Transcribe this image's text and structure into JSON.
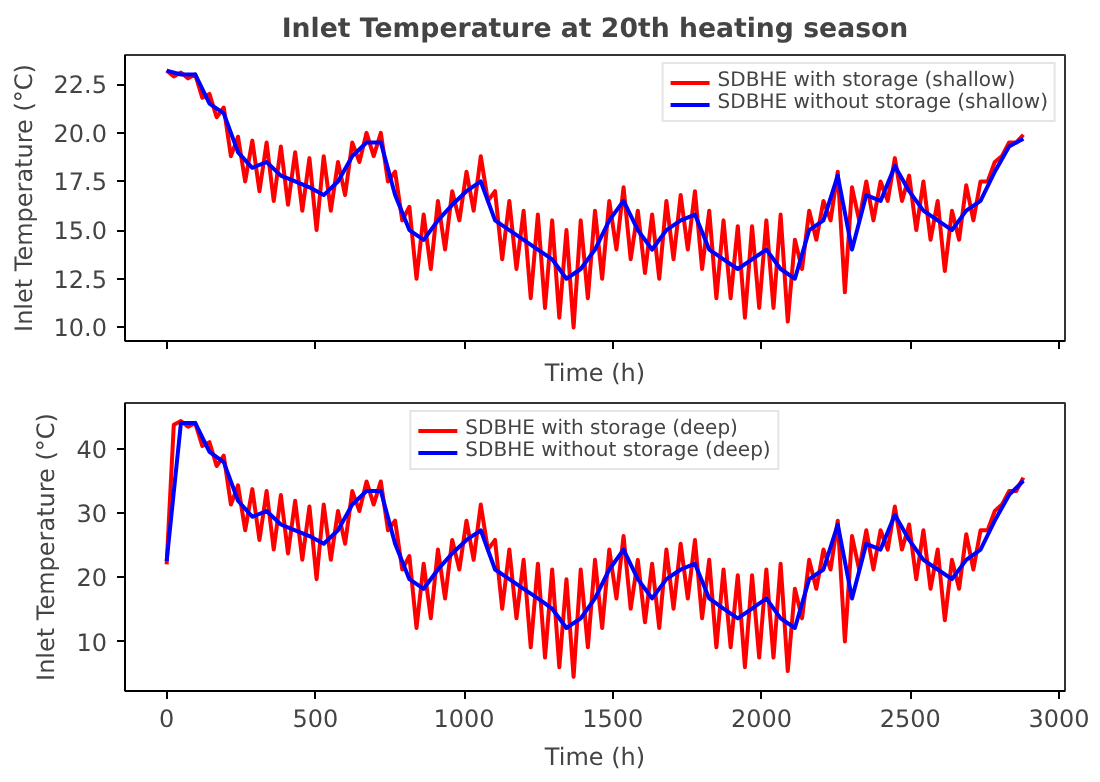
{
  "chart_data": [
    {
      "type": "line",
      "title": "Inlet Temperature at 20th heating season",
      "xlabel": "Time (h)",
      "ylabel": "Inlet Temperature (°C)",
      "xlim": [
        -140,
        3020
      ],
      "xticks": [
        0,
        500,
        1000,
        1500,
        2000,
        2500,
        3000
      ],
      "ylim": [
        9.3,
        24.0
      ],
      "yticks": [
        {
          "value": 10,
          "label": "10.0"
        },
        12.5,
        {
          "value": 15,
          "label": "15.0"
        },
        17.5,
        {
          "value": 20,
          "label": "20.0"
        },
        22.5
      ],
      "tick_labels": "y",
      "grid": false,
      "legend": "top right",
      "marker": "none",
      "line_style": "solid",
      "series": [
        {
          "name": "SDBHE with storage (shallow)",
          "color": "#ff0000",
          "x": [
            0,
            24,
            48,
            72,
            96,
            120,
            144,
            168,
            192,
            216,
            240,
            264,
            288,
            312,
            336,
            360,
            384,
            408,
            432,
            456,
            480,
            504,
            528,
            552,
            576,
            600,
            624,
            648,
            672,
            696,
            720,
            744,
            768,
            792,
            816,
            840,
            864,
            888,
            912,
            936,
            960,
            984,
            1008,
            1032,
            1056,
            1080,
            1104,
            1128,
            1152,
            1176,
            1200,
            1224,
            1248,
            1272,
            1296,
            1320,
            1344,
            1368,
            1392,
            1416,
            1440,
            1464,
            1488,
            1512,
            1536,
            1560,
            1584,
            1608,
            1632,
            1656,
            1680,
            1704,
            1728,
            1752,
            1776,
            1800,
            1824,
            1848,
            1872,
            1896,
            1920,
            1944,
            1968,
            1992,
            2016,
            2040,
            2064,
            2088,
            2112,
            2136,
            2160,
            2184,
            2208,
            2232,
            2256,
            2280,
            2304,
            2328,
            2352,
            2376,
            2400,
            2424,
            2448,
            2472,
            2496,
            2520,
            2544,
            2568,
            2592,
            2616,
            2640,
            2664,
            2688,
            2712,
            2736,
            2760,
            2784,
            2808,
            2832,
            2856,
            2880
          ],
          "values": [
            23.2,
            22.9,
            23.1,
            22.8,
            23.0,
            21.8,
            22.0,
            20.8,
            21.3,
            18.8,
            19.8,
            17.5,
            19.6,
            17.0,
            19.5,
            16.5,
            19.3,
            16.3,
            19.0,
            16.0,
            18.7,
            15.0,
            18.8,
            16.0,
            18.5,
            16.8,
            19.5,
            18.5,
            20.0,
            18.8,
            20.0,
            17.5,
            18.0,
            15.5,
            16.2,
            12.5,
            15.8,
            13.0,
            16.5,
            14.0,
            17.0,
            15.5,
            18.0,
            16.0,
            18.8,
            16.5,
            17.0,
            13.5,
            16.5,
            13.0,
            16.0,
            11.5,
            15.8,
            11.0,
            15.5,
            10.5,
            15.0,
            10.0,
            15.5,
            11.5,
            16.0,
            12.5,
            16.5,
            14.0,
            17.2,
            13.5,
            16.0,
            12.8,
            15.8,
            12.5,
            16.5,
            13.5,
            16.8,
            14.0,
            17.0,
            13.0,
            16.0,
            11.5,
            15.5,
            11.5,
            15.2,
            10.5,
            15.2,
            11.0,
            15.5,
            11.0,
            15.8,
            10.3,
            14.5,
            13.0,
            16.0,
            14.5,
            16.5,
            15.5,
            18.0,
            11.8,
            17.2,
            15.5,
            17.5,
            15.5,
            17.5,
            16.5,
            18.7,
            16.5,
            17.8,
            15.0,
            17.5,
            14.5,
            16.5,
            12.9,
            16.0,
            14.5,
            17.3,
            15.5,
            17.5,
            17.5,
            18.5,
            18.8,
            19.5,
            19.5,
            19.9
          ]
        },
        {
          "name": "SDBHE without storage (shallow)",
          "color": "#0000ff",
          "x": [
            0,
            48,
            96,
            144,
            192,
            240,
            288,
            336,
            384,
            432,
            480,
            528,
            576,
            624,
            672,
            720,
            768,
            816,
            864,
            912,
            960,
            1008,
            1056,
            1104,
            1152,
            1200,
            1248,
            1296,
            1344,
            1392,
            1440,
            1488,
            1536,
            1584,
            1632,
            1680,
            1728,
            1776,
            1824,
            1872,
            1920,
            1968,
            2016,
            2064,
            2112,
            2160,
            2208,
            2256,
            2304,
            2352,
            2400,
            2448,
            2496,
            2544,
            2592,
            2640,
            2688,
            2736,
            2784,
            2832,
            2880
          ],
          "values": [
            23.2,
            23.0,
            23.0,
            21.5,
            21.0,
            19.0,
            18.2,
            18.5,
            17.8,
            17.5,
            17.2,
            16.8,
            17.5,
            18.8,
            19.5,
            19.5,
            16.8,
            15.0,
            14.5,
            15.5,
            16.3,
            17.0,
            17.5,
            15.5,
            15.0,
            14.5,
            14.0,
            13.5,
            12.5,
            13.0,
            14.0,
            15.5,
            16.5,
            15.0,
            14.0,
            15.0,
            15.5,
            15.8,
            14.0,
            13.5,
            13.0,
            13.5,
            14.0,
            13.0,
            12.5,
            15.0,
            15.5,
            17.8,
            14.0,
            16.8,
            16.5,
            18.3,
            17.0,
            16.0,
            15.5,
            15.0,
            16.0,
            16.5,
            18.0,
            19.3,
            19.7
          ]
        }
      ]
    },
    {
      "type": "line",
      "xlabel": "Time (h)",
      "ylabel": "Inlet Temperature (°C)",
      "xlim": [
        -140,
        3020
      ],
      "xticks": [
        0,
        500,
        1000,
        1500,
        2000,
        2500,
        3000
      ],
      "ylim": [
        2.3,
        47.1
      ],
      "yticks": [
        10,
        20,
        30,
        40
      ],
      "grid": false,
      "legend": "top",
      "marker": "none",
      "line_style": "solid",
      "series": [
        {
          "name": "SDBHE with storage (deep)",
          "color": "#ff0000",
          "x": [
            0,
            24,
            48,
            72,
            96,
            120,
            144,
            168,
            192,
            216,
            240,
            264,
            288,
            312,
            336,
            360,
            384,
            408,
            432,
            456,
            480,
            504,
            528,
            552,
            576,
            600,
            624,
            648,
            672,
            696,
            720,
            744,
            768,
            792,
            816,
            840,
            864,
            888,
            912,
            936,
            960,
            984,
            1008,
            1032,
            1056,
            1080,
            1104,
            1128,
            1152,
            1176,
            1200,
            1224,
            1248,
            1272,
            1296,
            1320,
            1344,
            1368,
            1392,
            1416,
            1440,
            1464,
            1488,
            1512,
            1536,
            1560,
            1584,
            1608,
            1632,
            1656,
            1680,
            1704,
            1728,
            1752,
            1776,
            1800,
            1824,
            1848,
            1872,
            1896,
            1920,
            1944,
            1968,
            1992,
            2016,
            2040,
            2064,
            2088,
            2112,
            2136,
            2160,
            2184,
            2208,
            2232,
            2256,
            2280,
            2304,
            2328,
            2352,
            2376,
            2400,
            2424,
            2448,
            2472,
            2496,
            2520,
            2544,
            2568,
            2592,
            2616,
            2640,
            2664,
            2688,
            2712,
            2736,
            2760,
            2784,
            2808,
            2832,
            2856,
            2880
          ],
          "values": [
            22.0,
            43.7,
            44.3,
            43.4,
            44.0,
            40.4,
            41.0,
            37.3,
            38.9,
            31.3,
            34.3,
            27.3,
            33.7,
            25.8,
            33.4,
            24.3,
            32.8,
            23.7,
            31.9,
            22.7,
            31.0,
            19.7,
            31.3,
            22.7,
            30.3,
            25.2,
            33.4,
            30.3,
            34.9,
            31.3,
            34.9,
            27.3,
            28.8,
            21.2,
            23.3,
            12.1,
            22.1,
            13.6,
            24.3,
            16.7,
            25.8,
            21.2,
            28.8,
            22.7,
            31.3,
            24.3,
            25.8,
            15.1,
            24.3,
            13.6,
            22.7,
            9.1,
            22.1,
            7.5,
            21.2,
            6.0,
            19.7,
            4.5,
            21.2,
            9.1,
            22.7,
            12.1,
            24.3,
            16.7,
            26.4,
            15.1,
            22.7,
            13.0,
            22.1,
            12.1,
            24.3,
            15.1,
            25.2,
            16.7,
            25.8,
            13.6,
            22.7,
            9.1,
            21.2,
            9.1,
            20.3,
            6.0,
            20.3,
            7.5,
            21.2,
            7.5,
            22.1,
            5.4,
            18.2,
            13.6,
            22.7,
            18.2,
            24.3,
            21.2,
            28.8,
            10.0,
            26.4,
            21.2,
            27.3,
            21.2,
            27.3,
            24.3,
            31.0,
            24.3,
            28.2,
            19.7,
            27.3,
            18.2,
            24.3,
            13.3,
            22.7,
            18.2,
            26.7,
            21.2,
            27.3,
            27.3,
            30.3,
            31.3,
            33.4,
            33.4,
            35.5
          ]
        },
        {
          "name": "SDBHE without storage (deep)",
          "color": "#0000ff",
          "x": [
            0,
            48,
            96,
            144,
            192,
            240,
            288,
            336,
            384,
            432,
            480,
            528,
            576,
            624,
            672,
            720,
            768,
            816,
            864,
            912,
            960,
            1008,
            1056,
            1104,
            1152,
            1200,
            1248,
            1296,
            1344,
            1392,
            1440,
            1488,
            1536,
            1584,
            1632,
            1680,
            1728,
            1776,
            1824,
            1872,
            1920,
            1968,
            2016,
            2064,
            2112,
            2160,
            2208,
            2256,
            2304,
            2352,
            2400,
            2448,
            2496,
            2544,
            2592,
            2640,
            2688,
            2736,
            2784,
            2832,
            2880
          ],
          "values": [
            22.5,
            44.0,
            44.0,
            39.5,
            37.9,
            31.9,
            29.4,
            30.3,
            28.2,
            27.3,
            26.4,
            25.2,
            27.3,
            31.3,
            33.4,
            33.4,
            25.2,
            19.7,
            18.2,
            21.2,
            23.7,
            25.8,
            27.3,
            21.2,
            19.7,
            18.2,
            16.7,
            15.1,
            12.1,
            13.6,
            16.7,
            21.2,
            24.3,
            19.7,
            16.7,
            19.7,
            21.2,
            22.1,
            16.7,
            15.1,
            13.6,
            15.1,
            16.7,
            13.6,
            12.1,
            19.7,
            21.2,
            28.2,
            16.7,
            25.2,
            24.3,
            29.7,
            25.8,
            22.7,
            21.2,
            19.7,
            22.7,
            24.3,
            28.8,
            32.8,
            35.0
          ]
        }
      ]
    }
  ]
}
